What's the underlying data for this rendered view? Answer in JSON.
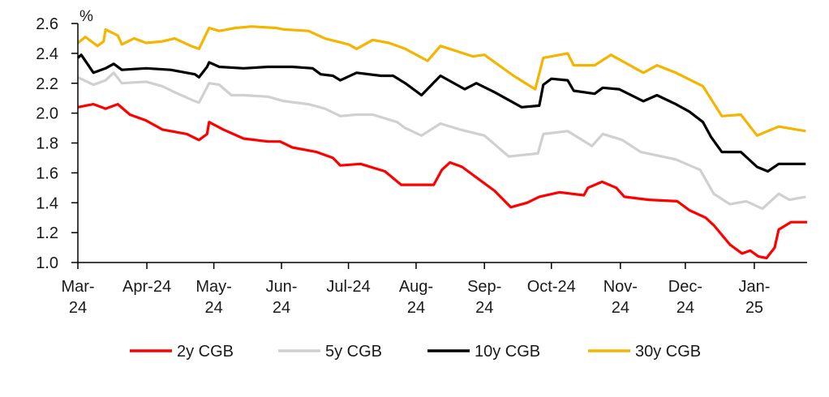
{
  "chart_data": {
    "type": "line",
    "title": "",
    "xlabel": "",
    "ylabel": "%",
    "x_units": "months since start of Mar-24",
    "ylim": [
      1.0,
      2.6
    ],
    "yticks": [
      "1.0",
      "1.2",
      "1.4",
      "1.6",
      "1.8",
      "2.0",
      "2.2",
      "2.4",
      "2.6"
    ],
    "ytick_values": [
      1.0,
      1.2,
      1.4,
      1.6,
      1.8,
      2.0,
      2.2,
      2.4,
      2.6
    ],
    "xlim": [
      0,
      10.78
    ],
    "xticks": [
      {
        "x": 0,
        "l1": "Mar-",
        "l2": "24"
      },
      {
        "x": 1.02,
        "l1": "Apr-24",
        "l2": ""
      },
      {
        "x": 2.01,
        "l1": "May-",
        "l2": "24"
      },
      {
        "x": 3.01,
        "l1": "Jun-",
        "l2": "24"
      },
      {
        "x": 4.0,
        "l1": "Jul-24",
        "l2": ""
      },
      {
        "x": 5.0,
        "l1": "Aug-",
        "l2": "24"
      },
      {
        "x": 6.01,
        "l1": "Sep-",
        "l2": "24"
      },
      {
        "x": 7.0,
        "l1": "Oct-24",
        "l2": ""
      },
      {
        "x": 8.02,
        "l1": "Nov-",
        "l2": "24"
      },
      {
        "x": 8.98,
        "l1": "Dec-",
        "l2": "24"
      },
      {
        "x": 10.0,
        "l1": "Jan-",
        "l2": "25"
      }
    ],
    "grid": false,
    "legend_position": "bottom",
    "series": [
      {
        "name": "5y CGB",
        "color": "#d0d0d0",
        "points": [
          [
            0,
            2.24
          ],
          [
            0.23,
            2.19
          ],
          [
            0.41,
            2.22
          ],
          [
            0.53,
            2.27
          ],
          [
            0.65,
            2.2
          ],
          [
            1.01,
            2.21
          ],
          [
            1.25,
            2.18
          ],
          [
            1.43,
            2.14
          ],
          [
            1.73,
            2.08
          ],
          [
            1.79,
            2.07
          ],
          [
            1.94,
            2.2
          ],
          [
            2.09,
            2.19
          ],
          [
            2.27,
            2.12
          ],
          [
            2.45,
            2.12
          ],
          [
            2.81,
            2.11
          ],
          [
            3.05,
            2.08
          ],
          [
            3.41,
            2.06
          ],
          [
            3.65,
            2.03
          ],
          [
            3.88,
            1.98
          ],
          [
            4.12,
            1.99
          ],
          [
            4.36,
            1.99
          ],
          [
            4.72,
            1.94
          ],
          [
            4.84,
            1.9
          ],
          [
            5.08,
            1.85
          ],
          [
            5.36,
            1.93
          ],
          [
            5.65,
            1.89
          ],
          [
            6.01,
            1.85
          ],
          [
            6.37,
            1.71
          ],
          [
            6.8,
            1.73
          ],
          [
            6.88,
            1.86
          ],
          [
            7.24,
            1.88
          ],
          [
            7.6,
            1.78
          ],
          [
            7.76,
            1.86
          ],
          [
            8.05,
            1.82
          ],
          [
            8.32,
            1.74
          ],
          [
            8.84,
            1.69
          ],
          [
            9.2,
            1.62
          ],
          [
            9.4,
            1.46
          ],
          [
            9.64,
            1.39
          ],
          [
            9.88,
            1.41
          ],
          [
            10.12,
            1.36
          ],
          [
            10.36,
            1.46
          ],
          [
            10.52,
            1.42
          ],
          [
            10.76,
            1.44
          ]
        ]
      },
      {
        "name": "30y CGB",
        "color": "#f5b400",
        "points": [
          [
            0,
            2.47
          ],
          [
            0.11,
            2.51
          ],
          [
            0.29,
            2.45
          ],
          [
            0.38,
            2.48
          ],
          [
            0.41,
            2.56
          ],
          [
            0.59,
            2.52
          ],
          [
            0.65,
            2.46
          ],
          [
            0.83,
            2.5
          ],
          [
            1.01,
            2.47
          ],
          [
            1.25,
            2.48
          ],
          [
            1.43,
            2.5
          ],
          [
            1.67,
            2.45
          ],
          [
            1.79,
            2.43
          ],
          [
            1.94,
            2.57
          ],
          [
            2.09,
            2.55
          ],
          [
            2.33,
            2.57
          ],
          [
            2.57,
            2.58
          ],
          [
            2.93,
            2.57
          ],
          [
            3.05,
            2.56
          ],
          [
            3.41,
            2.55
          ],
          [
            3.65,
            2.5
          ],
          [
            4.0,
            2.46
          ],
          [
            4.12,
            2.43
          ],
          [
            4.36,
            2.49
          ],
          [
            4.6,
            2.47
          ],
          [
            4.84,
            2.43
          ],
          [
            5.17,
            2.35
          ],
          [
            5.36,
            2.45
          ],
          [
            5.84,
            2.38
          ],
          [
            6.01,
            2.39
          ],
          [
            6.44,
            2.25
          ],
          [
            6.76,
            2.16
          ],
          [
            6.88,
            2.37
          ],
          [
            7.24,
            2.4
          ],
          [
            7.33,
            2.32
          ],
          [
            7.64,
            2.32
          ],
          [
            7.88,
            2.39
          ],
          [
            8.36,
            2.27
          ],
          [
            8.56,
            2.32
          ],
          [
            8.84,
            2.27
          ],
          [
            9.24,
            2.18
          ],
          [
            9.52,
            1.98
          ],
          [
            9.8,
            1.99
          ],
          [
            10.04,
            1.85
          ],
          [
            10.36,
            1.91
          ],
          [
            10.76,
            1.88
          ]
        ]
      },
      {
        "name": "10y CGB",
        "color": "#000000",
        "points": [
          [
            0,
            2.37
          ],
          [
            0.05,
            2.39
          ],
          [
            0.23,
            2.27
          ],
          [
            0.41,
            2.3
          ],
          [
            0.53,
            2.33
          ],
          [
            0.65,
            2.29
          ],
          [
            1.01,
            2.3
          ],
          [
            1.37,
            2.29
          ],
          [
            1.73,
            2.26
          ],
          [
            1.79,
            2.24
          ],
          [
            1.91,
            2.31
          ],
          [
            1.94,
            2.34
          ],
          [
            2.09,
            2.31
          ],
          [
            2.45,
            2.3
          ],
          [
            2.81,
            2.31
          ],
          [
            3.17,
            2.31
          ],
          [
            3.47,
            2.3
          ],
          [
            3.59,
            2.26
          ],
          [
            3.77,
            2.25
          ],
          [
            3.88,
            2.22
          ],
          [
            4.12,
            2.27
          ],
          [
            4.48,
            2.25
          ],
          [
            4.66,
            2.25
          ],
          [
            4.84,
            2.2
          ],
          [
            5.08,
            2.12
          ],
          [
            5.36,
            2.25
          ],
          [
            5.72,
            2.16
          ],
          [
            5.89,
            2.2
          ],
          [
            6.16,
            2.14
          ],
          [
            6.56,
            2.04
          ],
          [
            6.82,
            2.05
          ],
          [
            6.88,
            2.19
          ],
          [
            7.0,
            2.23
          ],
          [
            7.24,
            2.22
          ],
          [
            7.33,
            2.15
          ],
          [
            7.64,
            2.13
          ],
          [
            7.76,
            2.17
          ],
          [
            8.0,
            2.16
          ],
          [
            8.36,
            2.08
          ],
          [
            8.56,
            2.12
          ],
          [
            8.84,
            2.06
          ],
          [
            9.04,
            2.01
          ],
          [
            9.24,
            1.94
          ],
          [
            9.36,
            1.84
          ],
          [
            9.52,
            1.74
          ],
          [
            9.8,
            1.74
          ],
          [
            10.04,
            1.64
          ],
          [
            10.2,
            1.61
          ],
          [
            10.36,
            1.66
          ],
          [
            10.76,
            1.66
          ]
        ]
      },
      {
        "name": "2y CGB",
        "color": "#ff0000",
        "points": [
          [
            0,
            2.04
          ],
          [
            0.23,
            2.06
          ],
          [
            0.41,
            2.03
          ],
          [
            0.59,
            2.06
          ],
          [
            0.77,
            1.99
          ],
          [
            1.01,
            1.95
          ],
          [
            1.25,
            1.89
          ],
          [
            1.61,
            1.86
          ],
          [
            1.79,
            1.82
          ],
          [
            1.91,
            1.86
          ],
          [
            1.94,
            1.94
          ],
          [
            2.15,
            1.89
          ],
          [
            2.45,
            1.83
          ],
          [
            2.81,
            1.81
          ],
          [
            2.99,
            1.81
          ],
          [
            3.17,
            1.77
          ],
          [
            3.53,
            1.74
          ],
          [
            3.77,
            1.7
          ],
          [
            3.88,
            1.65
          ],
          [
            4.18,
            1.66
          ],
          [
            4.54,
            1.61
          ],
          [
            4.78,
            1.52
          ],
          [
            5.26,
            1.52
          ],
          [
            5.38,
            1.62
          ],
          [
            5.5,
            1.67
          ],
          [
            5.68,
            1.64
          ],
          [
            5.92,
            1.56
          ],
          [
            6.16,
            1.48
          ],
          [
            6.4,
            1.37
          ],
          [
            6.64,
            1.4
          ],
          [
            6.82,
            1.44
          ],
          [
            7.12,
            1.47
          ],
          [
            7.48,
            1.45
          ],
          [
            7.54,
            1.5
          ],
          [
            7.75,
            1.54
          ],
          [
            7.96,
            1.5
          ],
          [
            8.08,
            1.44
          ],
          [
            8.44,
            1.42
          ],
          [
            8.86,
            1.41
          ],
          [
            9.04,
            1.35
          ],
          [
            9.28,
            1.3
          ],
          [
            9.4,
            1.25
          ],
          [
            9.64,
            1.12
          ],
          [
            9.82,
            1.06
          ],
          [
            9.94,
            1.08
          ],
          [
            10.06,
            1.04
          ],
          [
            10.18,
            1.03
          ],
          [
            10.3,
            1.1
          ],
          [
            10.36,
            1.22
          ],
          [
            10.54,
            1.27
          ],
          [
            10.78,
            1.27
          ]
        ]
      }
    ],
    "legend": [
      {
        "label": "2y CGB",
        "color": "#ff0000"
      },
      {
        "label": "5y CGB",
        "color": "#d0d0d0"
      },
      {
        "label": "10y CGB",
        "color": "#000000"
      },
      {
        "label": "30y CGB",
        "color": "#f5b400"
      }
    ]
  }
}
